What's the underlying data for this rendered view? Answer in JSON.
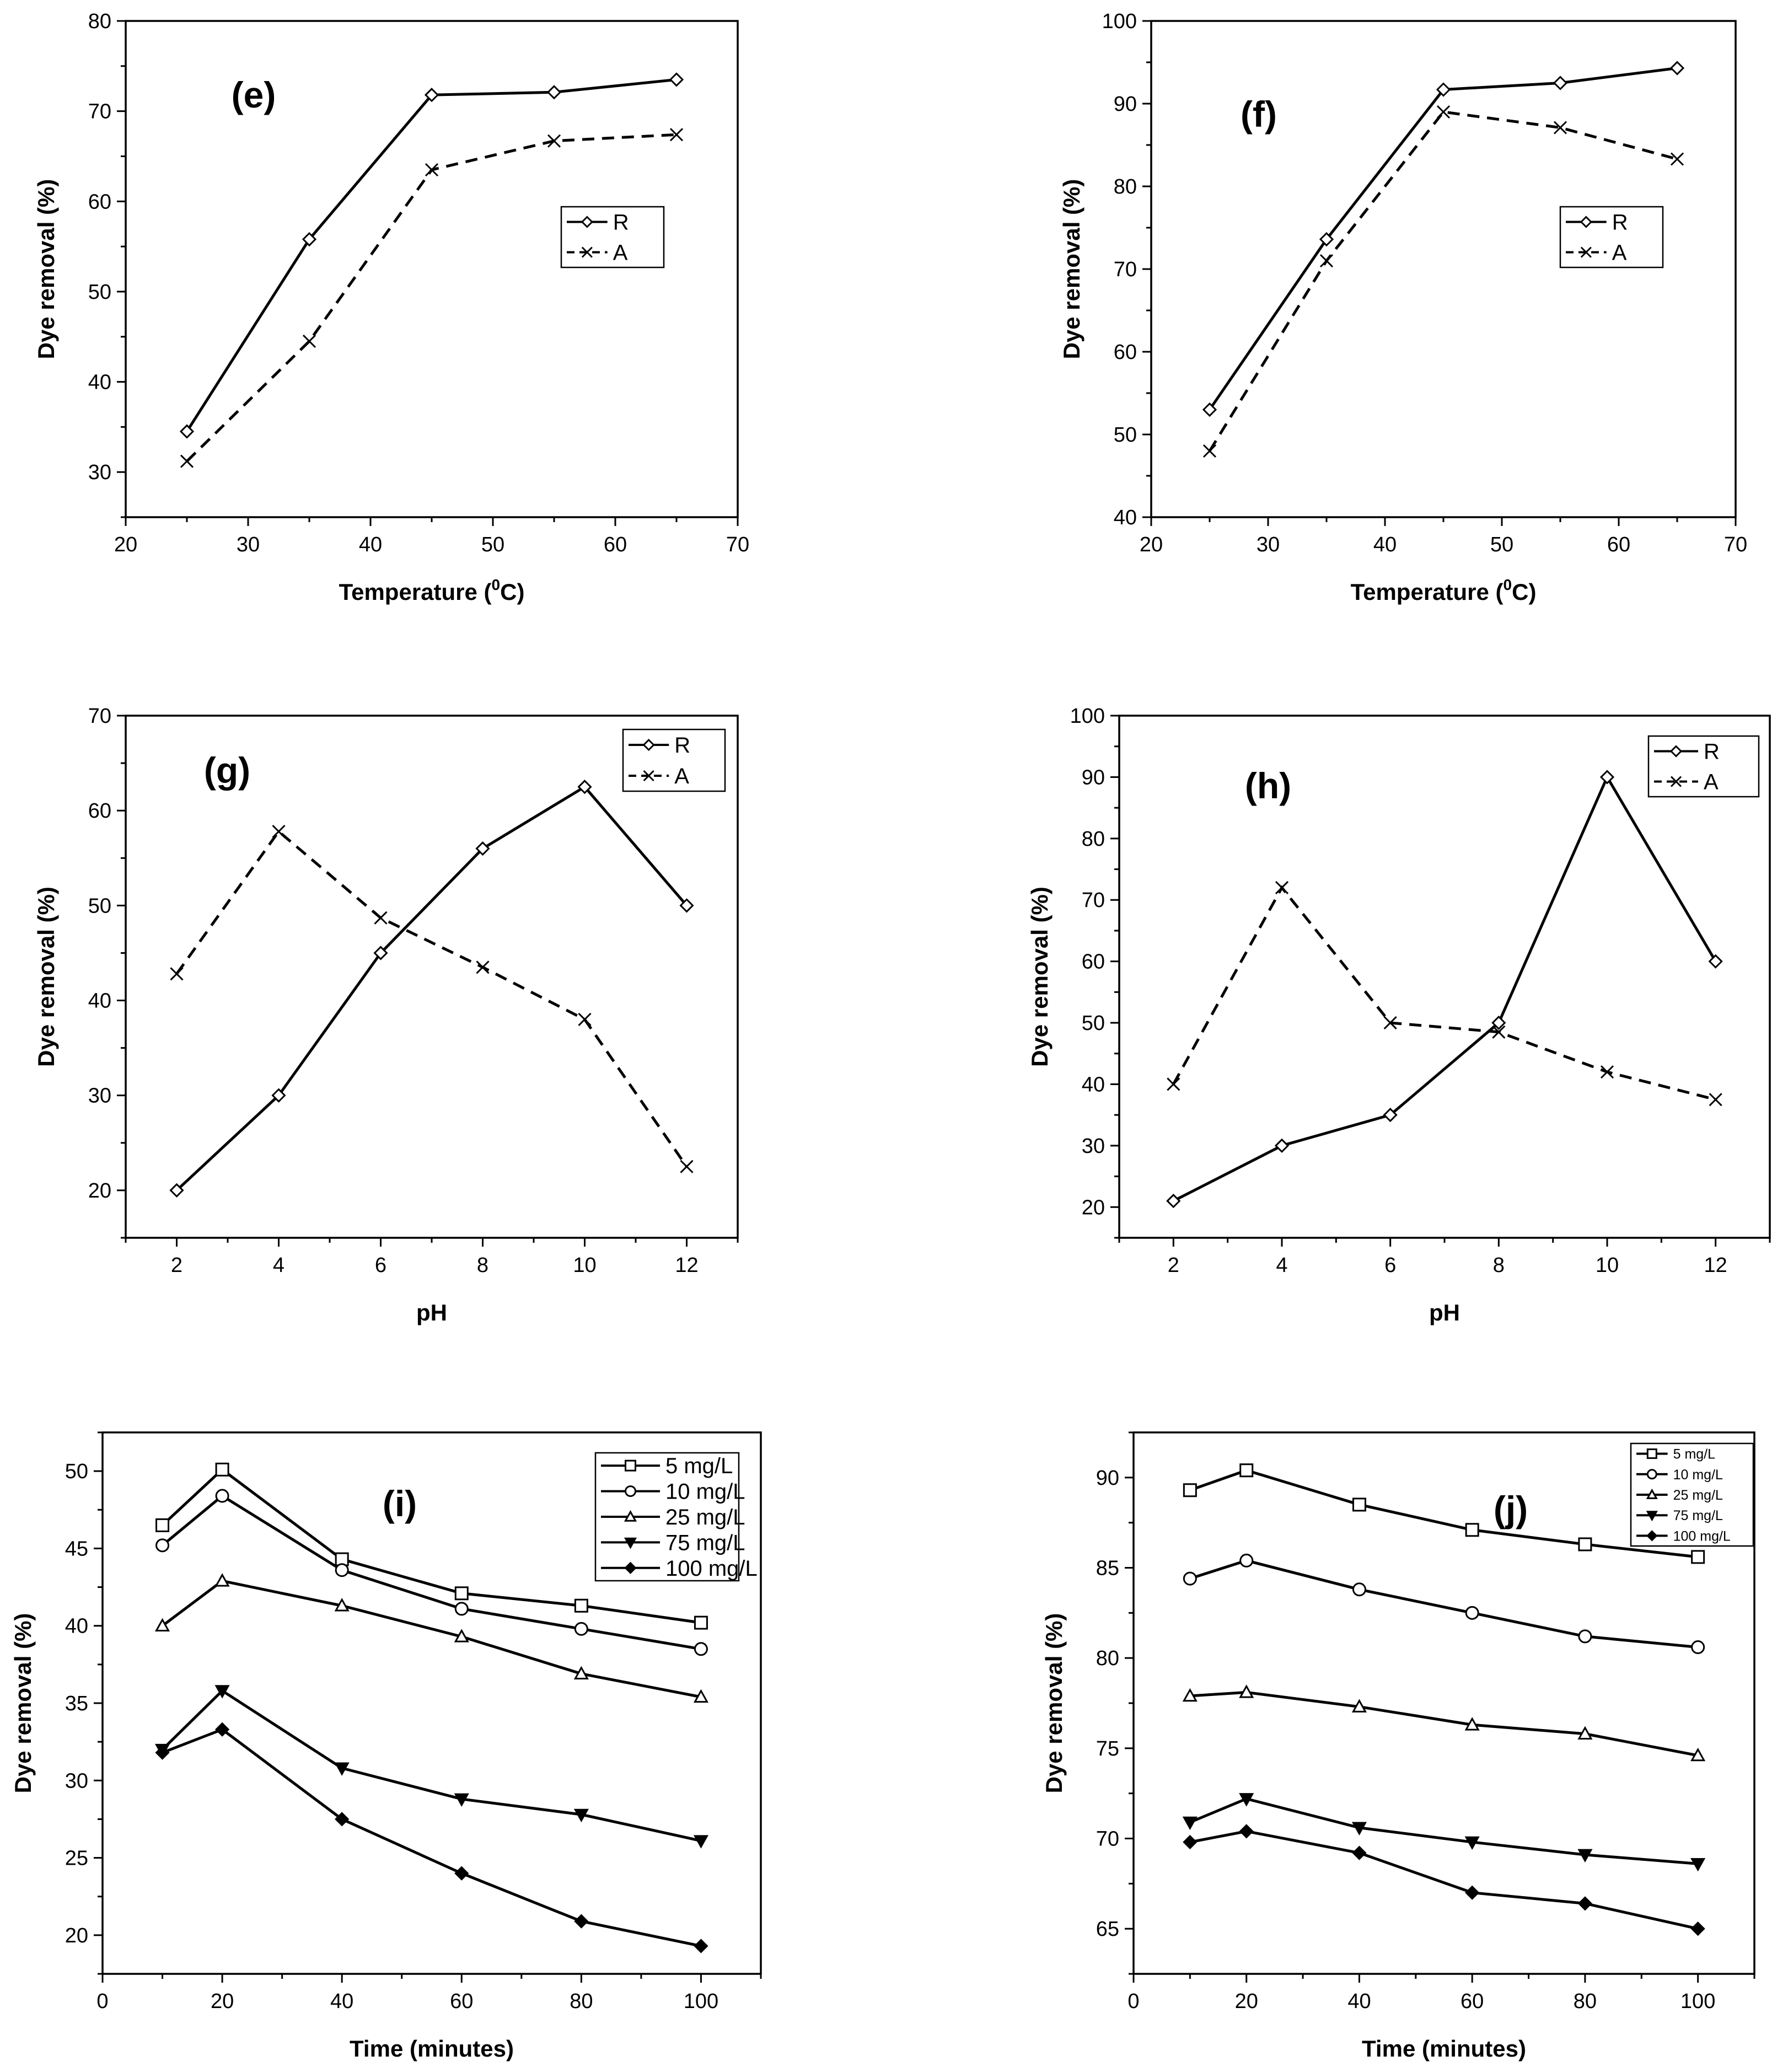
{
  "figure": {
    "charts": [
      {
        "id": "e",
        "panel_label": "(e)",
        "type": "line",
        "xlabel": "Temperature (0C)",
        "ylabel": "Dye removal (%)",
        "xlim": [
          20,
          70
        ],
        "ylim": [
          25,
          80
        ],
        "xticks": [
          20,
          30,
          40,
          50,
          60,
          70
        ],
        "yticks": [
          30,
          40,
          50,
          60,
          70,
          80
        ],
        "x": [
          25,
          35,
          45,
          55,
          65
        ],
        "series": [
          {
            "name": "R",
            "style": "solid",
            "marker": "diamond",
            "values": [
              34.5,
              55.8,
              71.8,
              72.1,
              73.5
            ]
          },
          {
            "name": "A",
            "style": "dashed",
            "marker": "x",
            "values": [
              31.2,
              44.5,
              63.5,
              66.7,
              67.4
            ]
          }
        ],
        "legend": "upper-right"
      },
      {
        "id": "f",
        "panel_label": "(f)",
        "type": "line",
        "xlabel": "Temperature (0C)",
        "ylabel": "Dye removal (%)",
        "xlim": [
          20,
          70
        ],
        "ylim": [
          40,
          100
        ],
        "xticks": [
          20,
          30,
          40,
          50,
          60,
          70
        ],
        "yticks": [
          40,
          50,
          60,
          70,
          80,
          90,
          100
        ],
        "x": [
          25,
          35,
          45,
          55,
          65
        ],
        "series": [
          {
            "name": "R",
            "style": "solid",
            "marker": "diamond",
            "values": [
              53,
              73.6,
              91.7,
              92.5,
              94.3
            ]
          },
          {
            "name": "A",
            "style": "dashed",
            "marker": "x",
            "values": [
              48,
              71,
              89,
              87.1,
              83.3
            ]
          }
        ],
        "legend": "upper-right"
      },
      {
        "id": "g",
        "panel_label": "(g)",
        "type": "line",
        "xlabel": "pH",
        "ylabel": "Dye removal (%)",
        "xlim": [
          1,
          13
        ],
        "ylim": [
          15,
          70
        ],
        "xticks": [
          2,
          4,
          6,
          8,
          10,
          12
        ],
        "yticks": [
          20,
          30,
          40,
          50,
          60,
          70
        ],
        "x": [
          2,
          4,
          6,
          8,
          10,
          12
        ],
        "series": [
          {
            "name": "R",
            "style": "solid",
            "marker": "diamond",
            "values": [
              20,
              30,
              45,
              56,
              62.5,
              50
            ]
          },
          {
            "name": "A",
            "style": "dashed",
            "marker": "x",
            "values": [
              42.8,
              57.8,
              48.7,
              43.5,
              38,
              22.5
            ]
          }
        ],
        "legend": "upper-right"
      },
      {
        "id": "h",
        "panel_label": "(h)",
        "type": "line",
        "xlabel": "pH",
        "ylabel": "Dye removal (%)",
        "xlim": [
          1,
          13
        ],
        "ylim": [
          15,
          100
        ],
        "xticks": [
          2,
          4,
          6,
          8,
          10,
          12
        ],
        "yticks": [
          20,
          30,
          40,
          50,
          60,
          70,
          80,
          90,
          100
        ],
        "x": [
          2,
          4,
          6,
          8,
          10,
          12
        ],
        "series": [
          {
            "name": "R",
            "style": "solid",
            "marker": "diamond",
            "values": [
              21,
              30,
              35,
              50,
              90,
              60
            ]
          },
          {
            "name": "A",
            "style": "dashed",
            "marker": "x",
            "values": [
              40,
              72,
              50,
              48.5,
              42,
              37.5
            ]
          }
        ],
        "legend": "upper-right"
      },
      {
        "id": "i",
        "panel_label": "(i)",
        "type": "line",
        "xlabel": "Time (minutes)",
        "ylabel": "Dye removal (%)",
        "xlim": [
          0,
          110
        ],
        "ylim": [
          17.5,
          52.5
        ],
        "xticks": [
          0,
          20,
          40,
          60,
          80,
          100
        ],
        "yticks": [
          20,
          25,
          30,
          35,
          40,
          45,
          50
        ],
        "x": [
          10,
          20,
          40,
          60,
          80,
          100
        ],
        "series": [
          {
            "name": "5 mg/L",
            "style": "solid",
            "marker": "square",
            "values": [
              46.5,
              50.1,
              44.3,
              42.1,
              41.3,
              40.2
            ]
          },
          {
            "name": "10 mg/L",
            "style": "solid",
            "marker": "circle",
            "values": [
              45.2,
              48.4,
              43.6,
              41.1,
              39.8,
              38.5
            ]
          },
          {
            "name": "25 mg/L",
            "style": "solid",
            "marker": "triangle-up",
            "values": [
              40,
              42.9,
              41.3,
              39.3,
              36.9,
              35.4
            ]
          },
          {
            "name": "75 mg/L",
            "style": "solid",
            "marker": "triangle-down",
            "values": [
              32,
              35.8,
              30.8,
              28.8,
              27.8,
              26.1
            ]
          },
          {
            "name": "100 mg/L",
            "style": "solid",
            "marker": "diamond-filled",
            "values": [
              31.8,
              33.3,
              27.5,
              24,
              20.9,
              19.3
            ]
          }
        ],
        "legend": "upper-right"
      },
      {
        "id": "j",
        "panel_label": "(j)",
        "type": "line",
        "xlabel": "Time (minutes)",
        "ylabel": "Dye removal (%)",
        "xlim": [
          0,
          110
        ],
        "ylim": [
          62.5,
          92.5
        ],
        "xticks": [
          0,
          20,
          40,
          60,
          80,
          100
        ],
        "yticks": [
          65,
          70,
          75,
          80,
          85,
          90
        ],
        "x": [
          10,
          20,
          40,
          60,
          80,
          100
        ],
        "series": [
          {
            "name": "5 mg/L",
            "style": "solid",
            "marker": "square",
            "values": [
              89.3,
              90.4,
              88.5,
              87.1,
              86.3,
              85.6
            ]
          },
          {
            "name": "10 mg/L",
            "style": "solid",
            "marker": "circle",
            "values": [
              84.4,
              85.4,
              83.8,
              82.5,
              81.2,
              80.6
            ]
          },
          {
            "name": "25 mg/L",
            "style": "solid",
            "marker": "triangle-up",
            "values": [
              77.9,
              78.1,
              77.3,
              76.3,
              75.8,
              74.6
            ]
          },
          {
            "name": "75 mg/L",
            "style": "solid",
            "marker": "triangle-down",
            "values": [
              70.9,
              72.2,
              70.6,
              69.8,
              69.1,
              68.6
            ]
          },
          {
            "name": "100 mg/L",
            "style": "solid",
            "marker": "diamond-filled",
            "values": [
              69.8,
              70.4,
              69.2,
              67,
              66.4,
              65
            ]
          }
        ],
        "legend": "upper-right"
      }
    ]
  },
  "chart_data": [
    {
      "type": "line",
      "title": "(e)",
      "xlabel": "Temperature (0C)",
      "ylabel": "Dye removal (%)",
      "x": [
        25,
        35,
        45,
        55,
        65
      ],
      "xlim": [
        20,
        70
      ],
      "ylim": [
        25,
        80
      ],
      "series": [
        {
          "name": "R",
          "values": [
            34.5,
            55.8,
            71.8,
            72.1,
            73.5
          ]
        },
        {
          "name": "A",
          "values": [
            31.2,
            44.5,
            63.5,
            66.7,
            67.4
          ]
        }
      ]
    },
    {
      "type": "line",
      "title": "(f)",
      "xlabel": "Temperature (0C)",
      "ylabel": "Dye removal (%)",
      "x": [
        25,
        35,
        45,
        55,
        65
      ],
      "xlim": [
        20,
        70
      ],
      "ylim": [
        40,
        100
      ],
      "series": [
        {
          "name": "R",
          "values": [
            53,
            73.6,
            91.7,
            92.5,
            94.3
          ]
        },
        {
          "name": "A",
          "values": [
            48,
            71,
            89,
            87.1,
            83.3
          ]
        }
      ]
    },
    {
      "type": "line",
      "title": "(g)",
      "xlabel": "pH",
      "ylabel": "Dye removal (%)",
      "x": [
        2,
        4,
        6,
        8,
        10,
        12
      ],
      "xlim": [
        1,
        13
      ],
      "ylim": [
        15,
        70
      ],
      "series": [
        {
          "name": "R",
          "values": [
            20,
            30,
            45,
            56,
            62.5,
            50
          ]
        },
        {
          "name": "A",
          "values": [
            42.8,
            57.8,
            48.7,
            43.5,
            38,
            22.5
          ]
        }
      ]
    },
    {
      "type": "line",
      "title": "(h)",
      "xlabel": "pH",
      "ylabel": "Dye removal (%)",
      "x": [
        2,
        4,
        6,
        8,
        10,
        12
      ],
      "xlim": [
        1,
        13
      ],
      "ylim": [
        15,
        100
      ],
      "series": [
        {
          "name": "R",
          "values": [
            21,
            30,
            35,
            50,
            90,
            60
          ]
        },
        {
          "name": "A",
          "values": [
            40,
            72,
            50,
            48.5,
            42,
            37.5
          ]
        }
      ]
    },
    {
      "type": "line",
      "title": "(i)",
      "xlabel": "Time (minutes)",
      "ylabel": "Dye removal (%)",
      "x": [
        10,
        20,
        40,
        60,
        80,
        100
      ],
      "xlim": [
        0,
        110
      ],
      "ylim": [
        17.5,
        52.5
      ],
      "series": [
        {
          "name": "5 mg/L",
          "values": [
            46.5,
            50.1,
            44.3,
            42.1,
            41.3,
            40.2
          ]
        },
        {
          "name": "10 mg/L",
          "values": [
            45.2,
            48.4,
            43.6,
            41.1,
            39.8,
            38.5
          ]
        },
        {
          "name": "25 mg/L",
          "values": [
            40,
            42.9,
            41.3,
            39.3,
            36.9,
            35.4
          ]
        },
        {
          "name": "75 mg/L",
          "values": [
            32,
            35.8,
            30.8,
            28.8,
            27.8,
            26.1
          ]
        },
        {
          "name": "100 mg/L",
          "values": [
            31.8,
            33.3,
            27.5,
            24,
            20.9,
            19.3
          ]
        }
      ]
    },
    {
      "type": "line",
      "title": "(j)",
      "xlabel": "Time (minutes)",
      "ylabel": "Dye removal (%)",
      "x": [
        10,
        20,
        40,
        60,
        80,
        100
      ],
      "xlim": [
        0,
        110
      ],
      "ylim": [
        62.5,
        92.5
      ],
      "series": [
        {
          "name": "5 mg/L",
          "values": [
            89.3,
            90.4,
            88.5,
            87.1,
            86.3,
            85.6
          ]
        },
        {
          "name": "10 mg/L",
          "values": [
            84.4,
            85.4,
            83.8,
            82.5,
            81.2,
            80.6
          ]
        },
        {
          "name": "25 mg/L",
          "values": [
            77.9,
            78.1,
            77.3,
            76.3,
            75.8,
            74.6
          ]
        },
        {
          "name": "75 mg/L",
          "values": [
            70.9,
            72.2,
            70.6,
            69.8,
            69.1,
            68.6
          ]
        },
        {
          "name": "100 mg/L",
          "values": [
            69.8,
            70.4,
            69.2,
            67,
            66.4,
            65
          ]
        }
      ]
    }
  ]
}
